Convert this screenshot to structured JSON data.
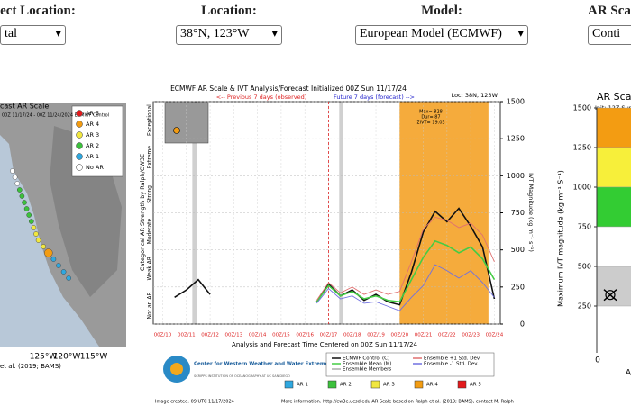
{
  "header": {
    "controls": [
      {
        "label": "ect Location:",
        "selected": "tal"
      },
      {
        "label": "Location:",
        "selected": "38°N, 123°W"
      },
      {
        "label": "Model:",
        "selected": "European Model (ECMWF)"
      },
      {
        "label": "AR Scal",
        "selected": "Conti"
      }
    ]
  },
  "left_panel": {
    "title": "cast AR Scale",
    "subtitle": "00Z 11/17/24 - 00Z 11/24/2024   ECMWF Control",
    "legend": [
      "AR 5",
      "AR 4",
      "AR 3",
      "AR 2",
      "AR 1",
      "No AR"
    ],
    "legend_colors": [
      "#e31a1c",
      "#f39c12",
      "#f1e740",
      "#3cc13c",
      "#2fa8e0",
      "#ffffff"
    ],
    "lon_labels": [
      "125°W",
      "120°W",
      "115°W"
    ],
    "credit": "et al. (2019; BAMS)"
  },
  "chart_data": {
    "type": "line",
    "title": "ECMWF AR Scale & IVT Analysis/Forecast Initialized 00Z Sun 11/17/24",
    "location": "Loc: 38N, 123W",
    "previous_label": "<-- Previous 7 days (observed)",
    "future_label": "Future 7 days (forecast) -->",
    "stats": [
      "Max= 828",
      "Dur= 87",
      "ΣIVT= 19.03"
    ],
    "y_label_left": "Categorical AR Strength by Ralph/CW3E",
    "y_label_right": "IVT Magnitude (kg m⁻¹ s⁻¹)",
    "x_label": "Analysis and Forecast Time Centered on 00Z Sun 11/17/24",
    "ar_categories": [
      "Not an AR",
      "Weak AR",
      "Moderate",
      "Strong",
      "Extreme",
      "Exceptional"
    ],
    "x": [
      10.5,
      11,
      11.5,
      12,
      12.5,
      13,
      13.5,
      14,
      14.5,
      15,
      15.5,
      16,
      16.5,
      17,
      17.5,
      18,
      18.5,
      19,
      19.5,
      20,
      20.5,
      21,
      21.5,
      22,
      22.5,
      23,
      23.5,
      24
    ],
    "series": [
      {
        "name": "ECMWF Control (C)",
        "color": "#111111",
        "values": [
          180,
          230,
          300,
          200,
          null,
          null,
          null,
          null,
          null,
          null,
          null,
          null,
          150,
          270,
          190,
          230,
          160,
          200,
          150,
          130,
          350,
          620,
          760,
          690,
          780,
          660,
          520,
          170
        ]
      },
      {
        "name": "Ensemble Mean (M)",
        "color": "#44cc44",
        "values": [
          null,
          null,
          null,
          null,
          null,
          null,
          null,
          null,
          null,
          null,
          null,
          null,
          150,
          260,
          190,
          220,
          170,
          190,
          160,
          150,
          300,
          450,
          560,
          530,
          480,
          520,
          440,
          300
        ]
      },
      {
        "name": "Ensemble +1 Std. Dev.",
        "color": "#e07070",
        "values": [
          null,
          null,
          null,
          null,
          null,
          null,
          null,
          null,
          null,
          null,
          null,
          null,
          160,
          280,
          210,
          250,
          200,
          230,
          200,
          220,
          420,
          640,
          720,
          700,
          650,
          680,
          600,
          420
        ]
      },
      {
        "name": "Ensemble -1 Std. Dev.",
        "color": "#7070e0",
        "values": [
          null,
          null,
          null,
          null,
          null,
          null,
          null,
          null,
          null,
          null,
          null,
          null,
          140,
          240,
          170,
          190,
          140,
          150,
          120,
          90,
          180,
          260,
          400,
          360,
          310,
          360,
          280,
          180
        ]
      }
    ],
    "members_label": "Ensemble Members",
    "xlim": [
      9.6,
      24.25
    ],
    "xticks": [
      {
        "value": 10,
        "label": "00Z/10"
      },
      {
        "value": 11,
        "label": "00Z/11"
      },
      {
        "value": 12,
        "label": "00Z/12"
      },
      {
        "value": 13,
        "label": "00Z/13"
      },
      {
        "value": 14,
        "label": "00Z/14"
      },
      {
        "value": 15,
        "label": "00Z/15"
      },
      {
        "value": 16,
        "label": "00Z/16"
      },
      {
        "value": 17,
        "label": "00Z/17"
      },
      {
        "value": 18,
        "label": "00Z/18"
      },
      {
        "value": 19,
        "label": "00Z/19"
      },
      {
        "value": 20,
        "label": "00Z/20"
      },
      {
        "value": 21,
        "label": "00Z/21"
      },
      {
        "value": 22,
        "label": "00Z/22"
      },
      {
        "value": 23,
        "label": "00Z/23"
      },
      {
        "value": 24,
        "label": "00Z/24"
      }
    ],
    "ylim": [
      0,
      1500
    ],
    "yticks": [
      0,
      250,
      500,
      750,
      1000,
      1250,
      1500
    ],
    "init_x": 17,
    "shaded": [
      {
        "x": [
          11.25,
          11.45
        ],
        "color": "#d0d0d0"
      },
      {
        "x": [
          17.45,
          17.6
        ],
        "color": "#d0d0d0"
      },
      {
        "x": [
          20,
          23.75
        ],
        "color": "#f5ab3c"
      }
    ],
    "ar_boxes": [
      {
        "label": "AR 1",
        "color": "#2fa8e0"
      },
      {
        "label": "AR 2",
        "color": "#3cc13c"
      },
      {
        "label": "AR 3",
        "color": "#f1e740"
      },
      {
        "label": "AR 4",
        "color": "#f39c12"
      },
      {
        "label": "AR 5",
        "color": "#e31a1c"
      }
    ]
  },
  "center_footer": {
    "org": "Center for Western Weather and Water Extremes",
    "org_sub": "SCRIPPS INSTITUTION OF OCEANOGRAPHY AT UC SAN DIEGO",
    "created": "Image created: 09 UTC 11/17/2024",
    "info": "More information: http://cw3e.ucsd.edu  AR Scale based on Ralph et al. (2019; BAMS), contact M. Ralph"
  },
  "right_panel": {
    "title": "AR Sca",
    "subtitle": "Init: 12Z Sun",
    "y_label": "Maximum IVT magnitude (kg m⁻¹ S⁻¹)",
    "ylim": [
      0,
      1500
    ],
    "yticks": [
      250,
      500,
      750,
      1000,
      1250,
      1500
    ],
    "bands": [
      {
        "range": [
          1250,
          1500
        ],
        "color": "#f39c12"
      },
      {
        "range": [
          1000,
          1250
        ],
        "color": "#f7ef3a"
      },
      {
        "range": [
          750,
          1000
        ],
        "color": "#33cc33"
      },
      {
        "range": [
          500,
          750
        ],
        "color": "#ffffff"
      },
      {
        "range": [
          250,
          500
        ],
        "color": "#cccccc"
      }
    ],
    "marker": 320,
    "bottom_labels": [
      "0",
      "A"
    ]
  }
}
